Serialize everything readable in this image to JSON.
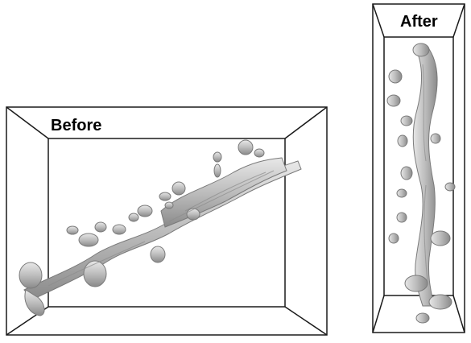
{
  "panels": {
    "before": {
      "label": "Before"
    },
    "after": {
      "label": "After"
    }
  },
  "colors": {
    "frame": "#1a1a1a",
    "dendrite_fill": "#b9b9b9",
    "dendrite_shade": "#8c8c8c",
    "dendrite_highlight": "#e6e6e6",
    "background": "#ffffff"
  }
}
